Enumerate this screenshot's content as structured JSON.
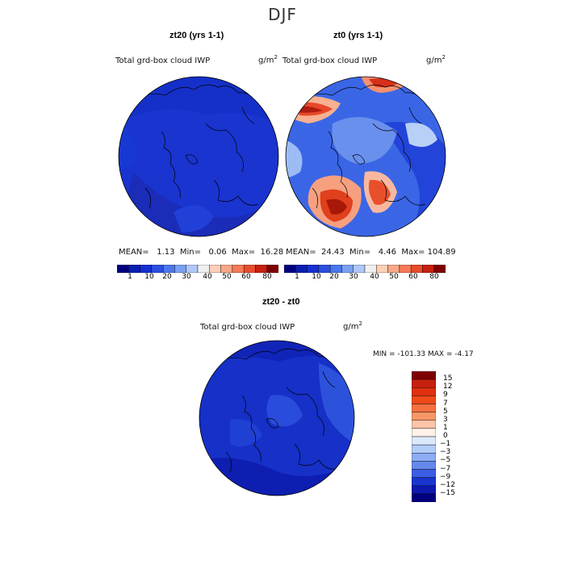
{
  "figure": {
    "season": "DJF",
    "panels": [
      {
        "id": "zt20",
        "title": "zt20 (yrs 1-1)",
        "variable": "Total grd-box cloud IWP",
        "units": "g/m",
        "units_sup": "2",
        "stats": {
          "mean_label": "MEAN=",
          "mean": "1.13",
          "min_label": "Min=",
          "min": "0.06",
          "max_label": "Max=",
          "max": "16.28"
        }
      },
      {
        "id": "zt0",
        "title": "zt0 (yrs 1-1)",
        "variable": "Total grd-box cloud IWP",
        "units": "g/m",
        "units_sup": "2",
        "stats": {
          "mean_label": "MEAN=",
          "mean": "24.43",
          "min_label": "Min=",
          "min": "4.46",
          "max_label": "Max=",
          "max": "104.89"
        }
      },
      {
        "id": "diff",
        "title": "zt20 - zt0",
        "variable": "Total grd-box cloud IWP",
        "units": "g/m",
        "units_sup": "2",
        "stats_text": "MIN = -101.33  MAX =  -4.17"
      }
    ]
  },
  "chart_data": [
    {
      "type": "heatmap",
      "projection": "north-polar-stereographic",
      "title": "zt20 (yrs 1-1)",
      "field": "Total grd-box cloud IWP",
      "units": "g/m2",
      "mean": 1.13,
      "min": 0.06,
      "max": 16.28,
      "colorbar": {
        "orientation": "horizontal",
        "placement": "bottom",
        "ticks": [
          "1",
          "10",
          "20",
          "30",
          "40",
          "50",
          "60",
          "80"
        ]
      }
    },
    {
      "type": "heatmap",
      "projection": "north-polar-stereographic",
      "title": "zt0 (yrs 1-1)",
      "field": "Total grd-box cloud IWP",
      "units": "g/m2",
      "mean": 24.43,
      "min": 4.46,
      "max": 104.89,
      "colorbar": {
        "orientation": "horizontal",
        "placement": "bottom",
        "ticks": [
          "1",
          "10",
          "20",
          "30",
          "40",
          "50",
          "60",
          "80"
        ]
      }
    },
    {
      "type": "heatmap",
      "projection": "north-polar-stereographic",
      "title": "zt20 - zt0",
      "field": "Total grd-box cloud IWP",
      "units": "g/m2",
      "min": -101.33,
      "max": -4.17,
      "colorbar": {
        "orientation": "vertical",
        "placement": "right",
        "ticks": [
          "15",
          "12",
          "9",
          "7",
          "5",
          "3",
          "1",
          "0",
          "-1",
          "-3",
          "-5",
          "-7",
          "-9",
          "-12",
          "-15"
        ]
      }
    }
  ],
  "colors": {
    "sequential": [
      "#00007f",
      "#0a1fb0",
      "#1530d0",
      "#2a4fe0",
      "#4a78ec",
      "#7aa0f2",
      "#b0c8f8",
      "#f0f0f0",
      "#fcd0b8",
      "#f8a888",
      "#f47a58",
      "#e84c2c",
      "#c82010",
      "#7f0000"
    ],
    "diverging": [
      "#7f0000",
      "#c82010",
      "#e03010",
      "#f04a18",
      "#f87040",
      "#f89868",
      "#fcc4a8",
      "#fff0e8",
      "#dce8fc",
      "#b4ccf8",
      "#8cacf4",
      "#6488ec",
      "#3c5ee4",
      "#1a34d0",
      "#0c18b0",
      "#00007f"
    ],
    "coastline": "#000000",
    "map_bg_low": "#1d3ad8"
  }
}
